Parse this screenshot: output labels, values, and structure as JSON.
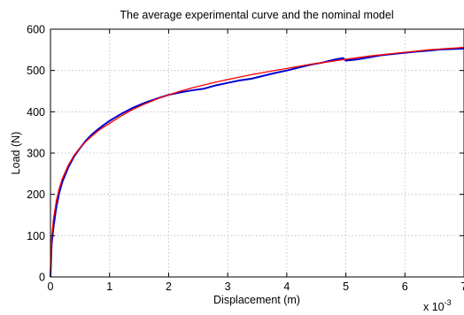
{
  "chart_data": {
    "type": "line",
    "title": "The average experimental curve and the nominal model",
    "xlabel": "Displacement (m)",
    "ylabel": "Load (N)",
    "x_multiplier": "x 10",
    "x_multiplier_exponent": "-3",
    "xlim": [
      0,
      7
    ],
    "ylim": [
      0,
      600
    ],
    "xticks": [
      0,
      1,
      2,
      3,
      4,
      5,
      6,
      7
    ],
    "yticks": [
      0,
      100,
      200,
      300,
      400,
      500,
      600
    ],
    "grid": true,
    "legend": "none",
    "series": [
      {
        "color": "#0000cc",
        "x": [
          0,
          0.02,
          0.05,
          0.1,
          0.15,
          0.2,
          0.3,
          0.4,
          0.5,
          0.6,
          0.7,
          0.8,
          0.9,
          1.0,
          1.2,
          1.4,
          1.6,
          1.8,
          2.0,
          2.2,
          2.4,
          2.6,
          2.8,
          3.0,
          3.2,
          3.4,
          3.6,
          3.8,
          4.0,
          4.2,
          4.4,
          4.6,
          4.8,
          4.95,
          5.0,
          5.2,
          5.4,
          5.6,
          5.8,
          6.0,
          6.2,
          6.4,
          6.6,
          6.8,
          7.0
        ],
        "y": [
          0,
          80,
          120,
          170,
          205,
          230,
          265,
          292,
          312,
          330,
          345,
          357,
          368,
          378,
          395,
          410,
          422,
          432,
          441,
          447,
          452,
          456,
          464,
          470,
          476,
          480,
          487,
          494,
          500,
          507,
          514,
          519,
          526,
          530,
          524,
          527,
          532,
          537,
          540,
          543,
          546,
          548,
          551,
          552,
          553
        ]
      },
      {
        "color": "#ff0000",
        "x": [
          0,
          0.02,
          0.05,
          0.1,
          0.15,
          0.2,
          0.3,
          0.4,
          0.5,
          0.6,
          0.7,
          0.8,
          0.9,
          1.0,
          1.2,
          1.4,
          1.6,
          1.8,
          2.0,
          2.2,
          2.4,
          2.6,
          2.8,
          3.0,
          3.2,
          3.4,
          3.6,
          3.8,
          4.0,
          4.2,
          4.4,
          4.6,
          4.8,
          5.0,
          5.2,
          5.4,
          5.6,
          5.8,
          6.0,
          6.2,
          6.4,
          6.6,
          6.8,
          7.0
        ],
        "y": [
          0,
          95,
          140,
          185,
          215,
          238,
          270,
          295,
          313,
          328,
          341,
          353,
          363,
          372,
          390,
          406,
          419,
          431,
          441,
          450,
          458,
          465,
          472,
          478,
          484,
          490,
          495,
          500,
          505,
          510,
          515,
          519,
          523,
          527,
          531,
          535,
          538,
          541,
          544,
          547,
          550,
          552,
          554,
          556
        ]
      }
    ]
  }
}
